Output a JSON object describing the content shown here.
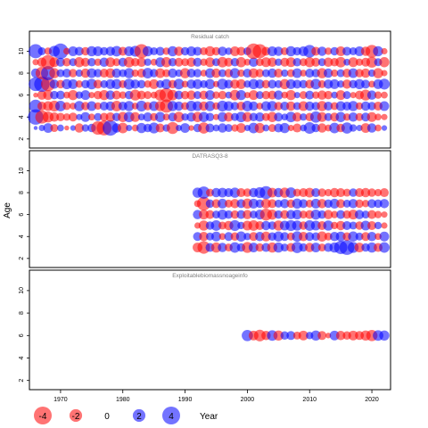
{
  "chart_data": {
    "type": "scatter",
    "ylabel": "Age",
    "xlabel": "Year",
    "xlim": [
      1965,
      2023
    ],
    "x_ticks": [
      1970,
      1980,
      1990,
      2000,
      2010,
      2020
    ],
    "ylim": [
      1.5,
      11.5
    ],
    "y_ticks": [
      2,
      4,
      6,
      8,
      10
    ],
    "legend": {
      "position": "bottom",
      "values": [
        -4,
        -2,
        0,
        2,
        4
      ],
      "title": "Year"
    },
    "colors": {
      "negative": "#ff0000",
      "positive": "#0000ff"
    },
    "fill_opacity": 0.55,
    "panels": [
      {
        "title": "Residual catch",
        "ages": [
          3,
          4,
          5,
          6,
          7,
          8,
          9,
          10
        ],
        "years": [
          1966,
          1967,
          1968,
          1969,
          1970,
          1971,
          1972,
          1973,
          1974,
          1975,
          1976,
          1977,
          1978,
          1979,
          1980,
          1981,
          1982,
          1983,
          1984,
          1985,
          1986,
          1987,
          1988,
          1989,
          1990,
          1991,
          1992,
          1993,
          1994,
          1995,
          1996,
          1997,
          1998,
          1999,
          2000,
          2001,
          2002,
          2003,
          2004,
          2005,
          2006,
          2007,
          2008,
          2009,
          2010,
          2011,
          2012,
          2013,
          2014,
          2015,
          2016,
          2017,
          2018,
          2019,
          2020,
          2021,
          2022
        ],
        "residuals": [
          [
            0.2,
            0.5,
            1.2,
            -0.8,
            0.6,
            -0.3,
            0.4,
            -1.1,
            0.7,
            0.9,
            -2.3,
            -2.8,
            3.0,
            1.1,
            -1.4,
            0.5,
            -0.6,
            1.3,
            0.9,
            1.5,
            -1.0,
            0.7,
            -1.8,
            0.5,
            1.2,
            -0.4,
            0.9,
            -1.6,
            1.0,
            0.6,
            1.1,
            0.8,
            -0.7,
            -1.2,
            0.5,
            1.4,
            -1.3,
            0.6,
            -0.8,
            1.0,
            1.3,
            -0.5,
            -1.0,
            0.6,
            1.7,
            0.9,
            -1.1,
            -0.6,
            1.4,
            -0.9,
            1.6,
            0.7,
            0.5,
            -1.2,
            1.1,
            -0.6,
            0.4
          ],
          [
            3.0,
            -2.2,
            -1.5,
            -1.1,
            -0.9,
            -0.7,
            -1.0,
            0.5,
            1.2,
            -0.6,
            0.8,
            -0.9,
            -1.1,
            0.9,
            -1.3,
            1.4,
            -1.2,
            0.6,
            1.1,
            -0.8,
            1.3,
            -0.6,
            1.0,
            -1.4,
            0.7,
            1.1,
            -1.3,
            1.3,
            0.9,
            -0.5,
            1.2,
            -1.1,
            0.8,
            1.4,
            -1.2,
            0.9,
            1.1,
            -0.8,
            -1.3,
            1.0,
            0.6,
            1.4,
            -1.1,
            0.7,
            -0.9,
            1.6,
            -1.2,
            0.8,
            -1.0,
            1.3,
            -0.7,
            1.1,
            -0.8,
            1.0,
            -1.2,
            -0.6,
            -0.5
          ],
          [
            2.1,
            -1.0,
            -1.2,
            -1.5,
            1.4,
            -0.8,
            -0.6,
            1.3,
            -0.9,
            1.2,
            -0.7,
            1.0,
            1.1,
            -1.4,
            1.0,
            1.3,
            -0.6,
            1.5,
            -0.9,
            1.2,
            -1.3,
            -2.2,
            1.3,
            1.1,
            -0.8,
            1.4,
            1.2,
            -1.1,
            1.3,
            -0.7,
            1.5,
            1.2,
            0.9,
            -1.0,
            1.4,
            1.1,
            -0.6,
            1.2,
            1.3,
            -0.9,
            1.0,
            -1.1,
            0.8,
            -1.2,
            1.1,
            0.9,
            -1.3,
            1.0,
            -0.8,
            1.2,
            1.0,
            1.3,
            -0.7,
            1.1,
            0.9,
            -1.0,
            1.2
          ],
          [
            -0.3,
            -1.1,
            -1.2,
            0.9,
            1.0,
            -0.6,
            -1.3,
            0.7,
            1.2,
            -0.5,
            -0.9,
            -1.3,
            1.1,
            -1.0,
            -0.7,
            0.9,
            -1.5,
            -1.0,
            -0.8,
            -0.6,
            -1.6,
            -2.5,
            -1.4,
            1.0,
            -0.9,
            -1.1,
            0.8,
            -1.0,
            1.2,
            -0.7,
            -0.9,
            0.6,
            -1.4,
            1.3,
            -0.5,
            -1.2,
            0.8,
            -0.9,
            -1.0,
            1.1,
            -0.6,
            -1.3,
            0.5,
            -0.8,
            1.0,
            -0.7,
            -1.1,
            -0.9,
            0.6,
            -1.2,
            0.8,
            -0.5,
            -1.0,
            -1.5,
            1.1,
            -0.7,
            -0.6
          ],
          [
            2.4,
            3.0,
            -2.5,
            1.1,
            -0.9,
            1.3,
            1.2,
            -0.7,
            0.9,
            1.4,
            -1.0,
            0.8,
            1.2,
            1.3,
            -0.8,
            1.5,
            1.1,
            0.9,
            -0.7,
            -1.2,
            0.8,
            1.3,
            -0.9,
            1.4,
            -0.6,
            1.1,
            1.2,
            0.8,
            1.3,
            -0.5,
            1.5,
            1.0,
            -1.1,
            -1.2,
            0.7,
            1.3,
            1.1,
            -0.9,
            1.0,
            0.8,
            -1.3,
            1.2,
            1.0,
            0.9,
            -1.0,
            1.4,
            -0.8,
            1.1,
            1.2,
            0.7,
            -1.1,
            0.9,
            1.3,
            1.0,
            -0.6,
            1.2,
            1.5
          ],
          [
            1.1,
            -2.0,
            2.5,
            -1.3,
            0.8,
            1.0,
            -0.9,
            0.7,
            -1.1,
            1.2,
            0.9,
            -1.0,
            -1.2,
            1.1,
            0.8,
            1.3,
            -0.7,
            -1.0,
            1.4,
            0.9,
            -1.2,
            -0.8,
            1.1,
            0.7,
            -1.3,
            1.0,
            0.9,
            -0.6,
            1.2,
            -1.1,
            0.8,
            -0.9,
            1.3,
            -0.7,
            1.0,
            -1.2,
            -0.9,
            0.8,
            1.1,
            -1.0,
            0.7,
            -0.8,
            1.2,
            -0.6,
            1.0,
            0.9,
            -1.3,
            1.1,
            -0.7,
            0.8,
            -1.0,
            1.2,
            -0.9,
            -1.1,
            0.7,
            -1.3,
            -0.5
          ],
          [
            -0.5,
            -1.1,
            -2.6,
            -1.2,
            1.0,
            -0.9,
            0.8,
            -1.3,
            -1.0,
            0.9,
            -0.7,
            1.1,
            -1.2,
            -0.8,
            1.0,
            -1.4,
            -0.9,
            -1.1,
            0.7,
            -0.6,
            1.2,
            -1.3,
            0.9,
            -1.0,
            -0.8,
            -1.1,
            1.0,
            -0.7,
            -1.2,
            0.8,
            -1.4,
            -1.0,
            0.9,
            -1.3,
            -0.6,
            1.1,
            -0.8,
            -1.2,
            -1.1,
            0.7,
            -1.0,
            -1.2,
            0.9,
            -0.8,
            -1.3,
            -1.0,
            0.8,
            -1.1,
            -0.9,
            -1.4,
            0.6,
            -1.2,
            -0.7,
            -1.0,
            -1.5,
            0.8,
            -1.3
          ],
          [
            2.5,
            0.8,
            -0.7,
            1.5,
            3.0,
            -0.6,
            1.2,
            1.0,
            -0.9,
            1.3,
            1.2,
            0.9,
            1.1,
            1.4,
            -1.0,
            1.2,
            1.5,
            -2.5,
            1.3,
            0.8,
            1.0,
            -0.7,
            1.3,
            -1.1,
            0.9,
            1.2,
            1.0,
            -0.8,
            -1.3,
            -0.9,
            1.1,
            0.7,
            -1.2,
            -1.0,
            0.8,
            -3.0,
            -2.5,
            -1.0,
            1.2,
            1.1,
            -0.8,
            1.3,
            0.9,
            1.2,
            2.0,
            -1.0,
            1.1,
            -0.7,
            0.9,
            -1.2,
            1.0,
            0.8,
            1.2,
            -1.1,
            -2.0,
            1.3,
            -0.5
          ]
        ]
      },
      {
        "title": "DATRASQ3-8",
        "ages": [
          3,
          4,
          5,
          6,
          7,
          8
        ],
        "years": [
          1992,
          1993,
          1994,
          1995,
          1996,
          1997,
          1998,
          1999,
          2000,
          2001,
          2002,
          2003,
          2004,
          2005,
          2006,
          2007,
          2008,
          2009,
          2010,
          2011,
          2012,
          2013,
          2014,
          2015,
          2016,
          2017,
          2018,
          2019,
          2020,
          2021,
          2022
        ],
        "residuals": [
          [
            -1.2,
            -2.0,
            1.0,
            -1.3,
            1.1,
            -0.8,
            1.4,
            0.9,
            -1.5,
            1.2,
            -0.9,
            1.0,
            -1.3,
            1.3,
            0.8,
            -1.0,
            1.6,
            0.9,
            -1.1,
            1.2,
            -0.8,
            1.0,
            1.3,
            2.2,
            2.8,
            1.5,
            -1.2,
            0.9,
            1.3,
            -1.0,
            1.4
          ],
          [
            1.0,
            -1.1,
            0.8,
            1.2,
            -0.6,
            1.0,
            -0.9,
            1.3,
            0.7,
            -1.0,
            1.1,
            -1.2,
            0.9,
            1.3,
            1.0,
            -0.8,
            1.4,
            -1.1,
            1.0,
            0.9,
            -1.3,
            -0.8,
            1.1,
            1.2,
            -0.9,
            1.3,
            0.8,
            -1.0,
            1.1,
            -0.6,
            1.2
          ],
          [
            -0.5,
            -1.3,
            0.9,
            1.4,
            -0.8,
            -1.1,
            1.5,
            0.7,
            -1.2,
            -1.4,
            -1.0,
            1.1,
            0.9,
            -1.3,
            1.2,
            1.5,
            1.3,
            -0.9,
            1.4,
            1.2,
            -1.0,
            1.3,
            -0.7,
            -1.1,
            1.0,
            0.8,
            -0.9,
            1.2,
            -1.0,
            0.7,
            -0.5
          ],
          [
            1.1,
            -1.2,
            -1.0,
            0.8,
            1.3,
            0.9,
            -0.9,
            1.0,
            -1.1,
            0.8,
            1.2,
            -1.8,
            -1.3,
            0.9,
            -1.0,
            1.1,
            1.2,
            -0.8,
            -1.0,
            1.3,
            0.9,
            -1.1,
            -0.7,
            1.0,
            -0.9,
            -1.2,
            1.1,
            0.8,
            -1.0,
            -0.7,
            -0.5
          ],
          [
            -0.6,
            -2.3,
            0.9,
            -1.0,
            1.2,
            -0.8,
            -1.1,
            1.0,
            -1.3,
            1.2,
            0.9,
            -1.2,
            -1.0,
            0.8,
            1.1,
            -0.9,
            1.3,
            1.0,
            -0.8,
            1.2,
            -1.1,
            0.9,
            1.2,
            -1.0,
            0.8,
            1.1,
            -0.9,
            -0.7,
            1.0,
            0.9,
            1.1
          ],
          [
            1.3,
            1.9,
            -0.8,
            1.1,
            1.2,
            1.0,
            1.3,
            -1.0,
            -0.9,
            1.1,
            1.5,
            2.1,
            -1.2,
            1.1,
            -1.3,
            1.4,
            -0.8,
            -1.0,
            -1.2,
            1.0,
            -0.9,
            -0.7,
            -1.1,
            -1.0,
            -0.8,
            0.9,
            -1.0,
            -1.1,
            -0.9,
            -0.7,
            -1.0
          ]
        ]
      },
      {
        "title": "Exploitablebiomassnoageinfo",
        "ages": [
          6
        ],
        "years": [
          2000,
          2001,
          2002,
          2003,
          2004,
          2005,
          2006,
          2007,
          2008,
          2009,
          2010,
          2011,
          2012,
          2013,
          2014,
          2015,
          2016,
          2017,
          2018,
          2019,
          2020,
          2021,
          2022
        ],
        "residuals": [
          [
            1.6,
            -1.2,
            -1.7,
            -1.1,
            1.4,
            -1.3,
            0.9,
            1.0,
            -0.8,
            -1.2,
            0.7,
            1.3,
            -1.0,
            -0.4,
            1.2,
            -1.1,
            -0.9,
            -1.2,
            -1.0,
            -1.3,
            -1.6,
            1.4,
            1.3
          ]
        ]
      }
    ]
  }
}
